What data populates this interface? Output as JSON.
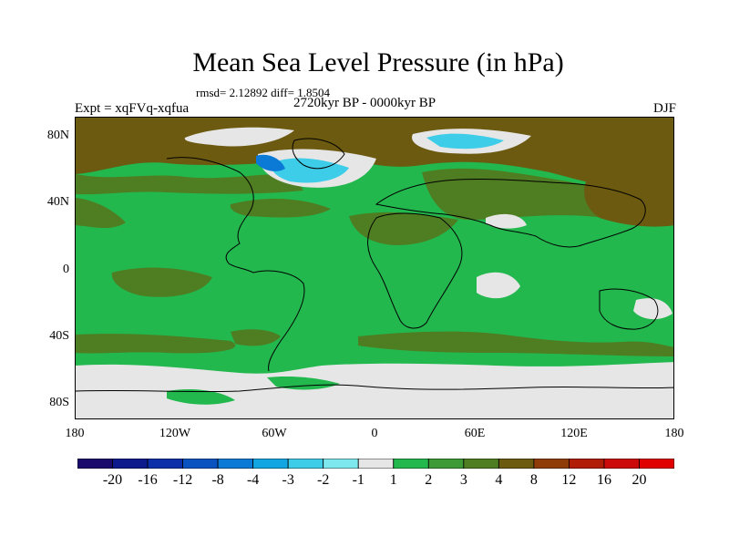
{
  "title": "Mean Sea Level Pressure (in hPa)",
  "stats": "rmsd= 2.12892 diff= 1.8504",
  "period": "2720kyr BP - 0000kyr BP",
  "expt": "Expt = xqFVq-xqfua",
  "season": "DJF",
  "lat_labels": [
    "80N",
    "40N",
    "0",
    "40S",
    "80S"
  ],
  "lon_labels": [
    "180",
    "120W",
    "60W",
    "0",
    "60E",
    "120E",
    "180"
  ],
  "colorbar": {
    "labels": [
      "-20",
      "-16",
      "-12",
      "-8",
      "-4",
      "-3",
      "-2",
      "-1",
      "1",
      "2",
      "3",
      "4",
      "8",
      "12",
      "16",
      "20"
    ],
    "colors": [
      "#1a0a6b",
      "#0d1a8c",
      "#0a2fa8",
      "#0a52c0",
      "#0a7ad6",
      "#12a7e3",
      "#3ecde8",
      "#7ee8ef",
      "#e6e6e6",
      "#22b84e",
      "#3e9a36",
      "#4f7d22",
      "#6b5a10",
      "#8f3c08",
      "#b01c06",
      "#cc0a0a",
      "#e00000"
    ]
  },
  "fill_colors": {
    "green": "#22b84e",
    "olive": "#4f7d22",
    "brown": "#6b5a10",
    "grey": "#e6e6e6",
    "cyan": "#3ecde8",
    "blue": "#0a7ad6",
    "darkblue": "#0a52c0",
    "white": "#ffffff"
  }
}
